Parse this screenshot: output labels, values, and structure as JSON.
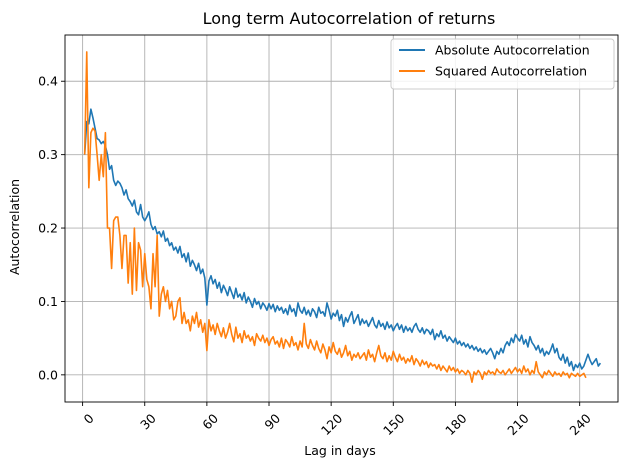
{
  "chart_data": {
    "type": "line",
    "title": "Long term Autocorrelation of returns",
    "xlabel": "Lag in days",
    "ylabel": "Autocorrelation",
    "xlim": [
      -8.5,
      258.5
    ],
    "ylim": [
      -0.037,
      0.463
    ],
    "xticks": [
      0,
      30,
      60,
      90,
      120,
      150,
      180,
      210,
      240
    ],
    "xtick_labels": [
      "0",
      "30",
      "60",
      "90",
      "120",
      "150",
      "180",
      "210",
      "240"
    ],
    "xtick_rotation": 45,
    "yticks": [
      0.0,
      0.1,
      0.2,
      0.3,
      0.4
    ],
    "ytick_labels": [
      "0.0",
      "0.1",
      "0.2",
      "0.3",
      "0.4"
    ],
    "grid": true,
    "legend_position": "top-right",
    "x_start": 1,
    "x_step": 1,
    "series": [
      {
        "name": "Absolute Autocorrelation",
        "color": "#1f77b4",
        "values": [
          0.3,
          0.345,
          0.342,
          0.362,
          0.35,
          0.336,
          0.322,
          0.32,
          0.315,
          0.318,
          0.312,
          0.3,
          0.28,
          0.285,
          0.265,
          0.258,
          0.264,
          0.261,
          0.255,
          0.245,
          0.252,
          0.24,
          0.236,
          0.23,
          0.238,
          0.222,
          0.218,
          0.232,
          0.215,
          0.21,
          0.215,
          0.222,
          0.205,
          0.198,
          0.202,
          0.192,
          0.195,
          0.188,
          0.196,
          0.182,
          0.186,
          0.176,
          0.18,
          0.17,
          0.174,
          0.166,
          0.175,
          0.16,
          0.165,
          0.154,
          0.166,
          0.148,
          0.156,
          0.15,
          0.142,
          0.152,
          0.138,
          0.144,
          0.132,
          0.095,
          0.128,
          0.135,
          0.124,
          0.13,
          0.118,
          0.126,
          0.112,
          0.122,
          0.116,
          0.108,
          0.12,
          0.112,
          0.104,
          0.118,
          0.106,
          0.11,
          0.102,
          0.112,
          0.098,
          0.106,
          0.1,
          0.092,
          0.104,
          0.096,
          0.1,
          0.09,
          0.098,
          0.094,
          0.088,
          0.097,
          0.09,
          0.096,
          0.086,
          0.094,
          0.088,
          0.092,
          0.084,
          0.09,
          0.082,
          0.095,
          0.086,
          0.09,
          0.08,
          0.098,
          0.088,
          0.084,
          0.092,
          0.082,
          0.088,
          0.08,
          0.09,
          0.086,
          0.078,
          0.092,
          0.084,
          0.086,
          0.08,
          0.098,
          0.088,
          0.076,
          0.084,
          0.08,
          0.088,
          0.074,
          0.082,
          0.066,
          0.078,
          0.072,
          0.08,
          0.086,
          0.07,
          0.076,
          0.082,
          0.068,
          0.076,
          0.07,
          0.074,
          0.066,
          0.072,
          0.078,
          0.068,
          0.064,
          0.074,
          0.066,
          0.07,
          0.062,
          0.072,
          0.064,
          0.068,
          0.06,
          0.066,
          0.07,
          0.062,
          0.068,
          0.058,
          0.066,
          0.06,
          0.064,
          0.058,
          0.066,
          0.07,
          0.062,
          0.058,
          0.064,
          0.056,
          0.062,
          0.06,
          0.055,
          0.062,
          0.048,
          0.056,
          0.052,
          0.06,
          0.05,
          0.054,
          0.046,
          0.052,
          0.048,
          0.044,
          0.05,
          0.042,
          0.046,
          0.04,
          0.044,
          0.038,
          0.042,
          0.036,
          0.04,
          0.034,
          0.038,
          0.032,
          0.036,
          0.03,
          0.034,
          0.028,
          0.032,
          0.036,
          0.03,
          0.022,
          0.032,
          0.028,
          0.036,
          0.03,
          0.04,
          0.045,
          0.04,
          0.05,
          0.044,
          0.055,
          0.05,
          0.046,
          0.054,
          0.042,
          0.048,
          0.038,
          0.052,
          0.044,
          0.04,
          0.034,
          0.04,
          0.03,
          0.036,
          0.026,
          0.032,
          0.028,
          0.034,
          0.042,
          0.03,
          0.036,
          0.024,
          0.02,
          0.028,
          0.016,
          0.024,
          0.012,
          0.018,
          0.006,
          0.014,
          0.01,
          0.016,
          0.008,
          0.012,
          0.02,
          0.028,
          0.02,
          0.014,
          0.018,
          0.022,
          0.012,
          0.016
        ]
      },
      {
        "name": "Squared Autocorrelation",
        "color": "#ff7f0e",
        "values": [
          0.3,
          0.44,
          0.255,
          0.33,
          0.336,
          0.332,
          0.3,
          0.265,
          0.3,
          0.27,
          0.33,
          0.2,
          0.2,
          0.145,
          0.21,
          0.215,
          0.215,
          0.19,
          0.145,
          0.19,
          0.19,
          0.125,
          0.18,
          0.11,
          0.2,
          0.115,
          0.18,
          0.17,
          0.12,
          0.165,
          0.13,
          0.12,
          0.09,
          0.165,
          0.12,
          0.19,
          0.08,
          0.11,
          0.12,
          0.1,
          0.115,
          0.09,
          0.1,
          0.075,
          0.08,
          0.1,
          0.105,
          0.07,
          0.085,
          0.07,
          0.075,
          0.06,
          0.08,
          0.07,
          0.085,
          0.065,
          0.075,
          0.058,
          0.07,
          0.033,
          0.075,
          0.06,
          0.068,
          0.055,
          0.07,
          0.06,
          0.052,
          0.064,
          0.05,
          0.058,
          0.07,
          0.055,
          0.045,
          0.065,
          0.05,
          0.056,
          0.044,
          0.06,
          0.05,
          0.054,
          0.046,
          0.052,
          0.04,
          0.056,
          0.05,
          0.046,
          0.054,
          0.044,
          0.05,
          0.04,
          0.048,
          0.052,
          0.042,
          0.046,
          0.038,
          0.05,
          0.036,
          0.048,
          0.044,
          0.038,
          0.052,
          0.04,
          0.044,
          0.034,
          0.046,
          0.038,
          0.07,
          0.042,
          0.036,
          0.048,
          0.04,
          0.034,
          0.046,
          0.036,
          0.03,
          0.042,
          0.034,
          0.022,
          0.038,
          0.03,
          0.044,
          0.032,
          0.028,
          0.036,
          0.024,
          0.03,
          0.04,
          0.026,
          0.032,
          0.02,
          0.028,
          0.024,
          0.03,
          0.022,
          0.026,
          0.03,
          0.02,
          0.034,
          0.024,
          0.028,
          0.018,
          0.03,
          0.04,
          0.026,
          0.022,
          0.03,
          0.018,
          0.026,
          0.02,
          0.032,
          0.024,
          0.018,
          0.028,
          0.02,
          0.024,
          0.016,
          0.022,
          0.018,
          0.026,
          0.014,
          0.022,
          0.018,
          0.012,
          0.02,
          0.014,
          0.018,
          0.01,
          0.016,
          0.012,
          0.014,
          0.008,
          0.014,
          0.006,
          0.012,
          0.008,
          0.004,
          0.012,
          0.006,
          0.01,
          0.004,
          0.008,
          0.002,
          0.006,
          0.004,
          0.0,
          0.006,
          0.002,
          -0.01,
          0.004,
          0.0,
          0.006,
          0.002,
          -0.006,
          0.004,
          0.0,
          0.006,
          0.002,
          0.004,
          0.0,
          0.008,
          0.004,
          0.002,
          0.006,
          0.0,
          0.004,
          0.008,
          0.002,
          0.006,
          0.01,
          0.004,
          0.008,
          0.002,
          0.012,
          0.004,
          0.008,
          0.0,
          0.006,
          0.002,
          0.018,
          0.004,
          0.0,
          -0.004,
          0.004,
          0.0,
          0.006,
          0.002,
          -0.002,
          0.004,
          0.0,
          0.002,
          -0.002,
          0.004,
          0.0,
          0.002,
          -0.004,
          0.002,
          0.0,
          -0.002,
          0.002,
          -0.002,
          0.0,
          0.002,
          -0.004
        ]
      }
    ]
  }
}
